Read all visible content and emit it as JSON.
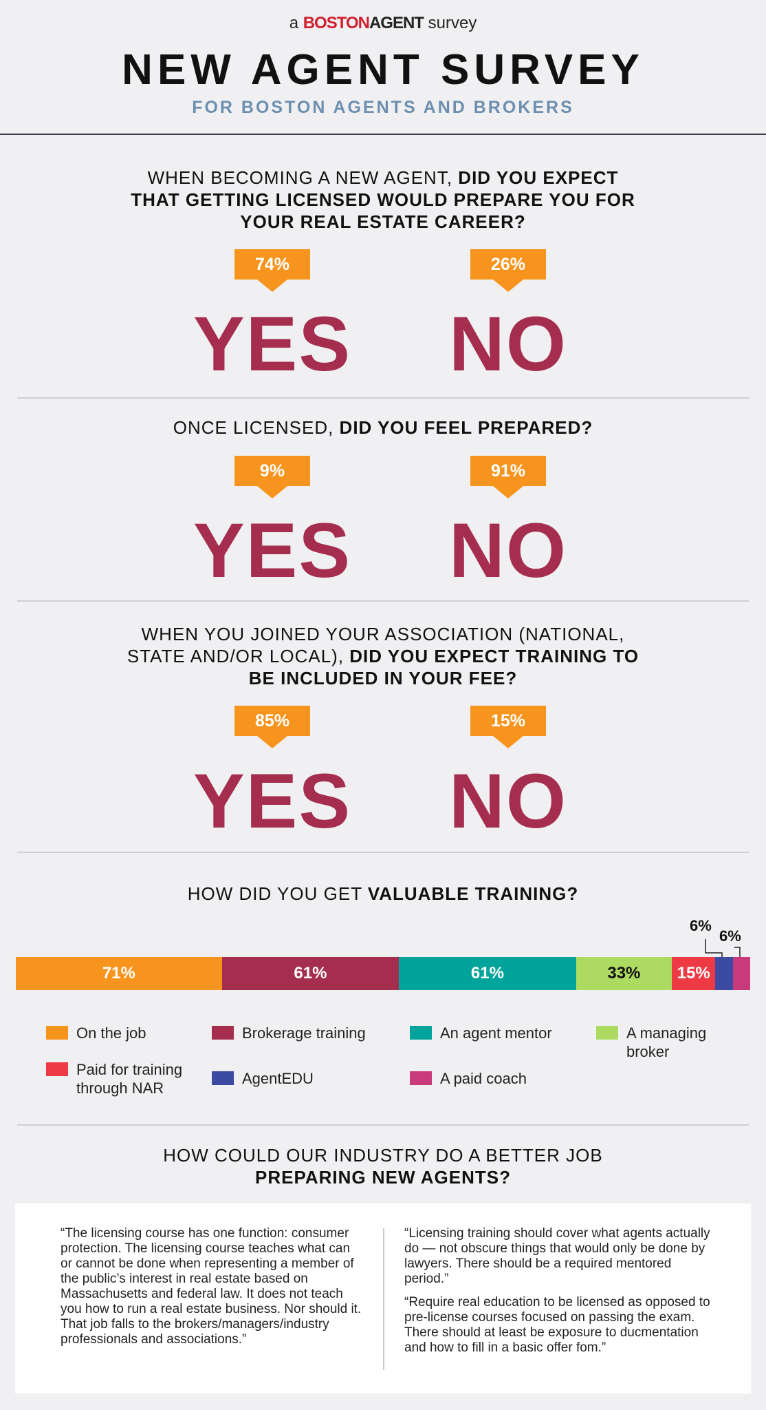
{
  "header": {
    "brand_prefix": "a",
    "brand_logo_1": "BOSTON",
    "brand_logo_2": "AGENT",
    "brand_suffix": "survey",
    "title": "NEW AGENT SURVEY",
    "subtitle": "FOR BOSTON AGENTS AND BROKERS"
  },
  "q1": {
    "line1_normal": "WHEN BECOMING A NEW AGENT, ",
    "line1_bold": "DID YOU EXPECT",
    "line2_bold": "THAT GETTING LICENSED WOULD PREPARE YOU FOR",
    "line3_bold": "YOUR REAL ESTATE CAREER?",
    "yes_pct": "74%",
    "no_pct": "26%",
    "yes_label": "YES",
    "no_label": "NO"
  },
  "q2": {
    "line1_normal": "ONCE LICENSED, ",
    "line1_bold": "DID YOU FEEL PREPARED?",
    "yes_pct": "9%",
    "no_pct": "91%",
    "yes_label": "YES",
    "no_label": "NO"
  },
  "q3": {
    "line1_normal": "WHEN YOU JOINED YOUR ASSOCIATION (NATIONAL,",
    "line2_normal": "STATE AND/OR LOCAL), ",
    "line2_bold": "DID YOU EXPECT TRAINING TO",
    "line3_bold": "BE INCLUDED IN YOUR FEE?",
    "yes_pct": "85%",
    "no_pct": "15%",
    "yes_label": "YES",
    "no_label": "NO"
  },
  "q4": {
    "line1_normal": "HOW DID YOU GET ",
    "line1_bold": "VALUABLE TRAINING?"
  },
  "q5": {
    "line1_normal": "HOW COULD OUR INDUSTRY DO A BETTER JOB",
    "line2_bold": "PREPARING NEW AGENTS?"
  },
  "chart_data": {
    "type": "bar",
    "orientation": "horizontal-stacked",
    "categories": [
      "On the job",
      "Brokerage training",
      "An agent mentor",
      "A managing broker",
      "Paid for training through NAR",
      "AgentEDU",
      "A paid coach"
    ],
    "values": [
      71,
      61,
      61,
      33,
      15,
      6,
      6
    ],
    "labels": [
      "71%",
      "61%",
      "61%",
      "33%",
      "15%",
      "6%",
      "6%"
    ],
    "colors": [
      "#f7941e",
      "#a52d4e",
      "#00a49a",
      "#addb62",
      "#ee3a45",
      "#3b4aa2",
      "#c83a7a"
    ],
    "legend_labels": [
      "On the job",
      "Brokerage training",
      "An agent mentor",
      "A managing",
      "broker",
      "Paid for training",
      "through NAR",
      "AgentEDU",
      "A paid coach"
    ]
  },
  "colors": {
    "accent_orange": "#f7941e",
    "answer_crimson": "#a52d4e",
    "subtitle_blue": "#6c8fb0",
    "background": "#f0f0f2"
  },
  "quotes": {
    "left": "“The licensing course has one function: consumer protection. The licensing course teaches what can or cannot be done when representing a member of the public’s interest in real estate based on Massachusetts and federal law. It does not teach you how to run a real estate business. Nor should it. That job falls to the brokers/managers/industry professionals and associations.”",
    "right_1": "“Licensing training should cover what agents actually do — not obscure things that would only be done by lawyers. There should be a required mentored period.”",
    "right_2": "“Require real education to be licensed as opposed to pre-license courses focused on passing the exam. There should at least be exposure to ducmentation and how to fill in a basic offer fom.”"
  }
}
